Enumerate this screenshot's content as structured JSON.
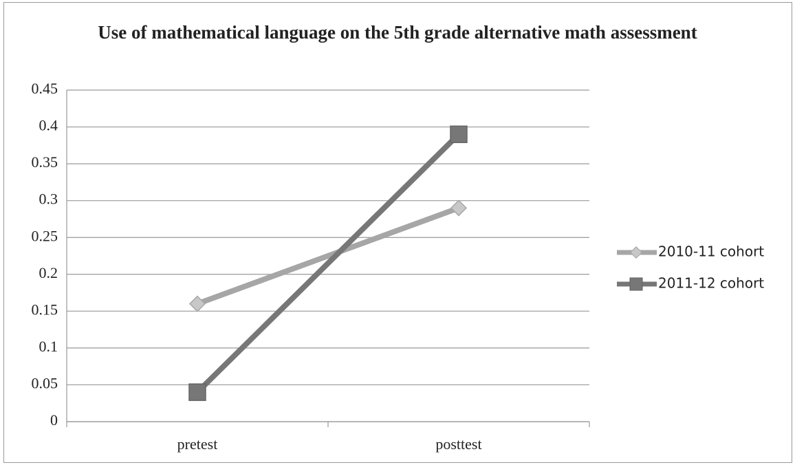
{
  "chart_data": {
    "type": "line",
    "title": "Use of mathematical language on the 5th grade alternative math assessment",
    "categories": [
      "pretest",
      "posttest"
    ],
    "series": [
      {
        "name": "2010-11 cohort",
        "color": "#a6a6a6",
        "marker": "diamond",
        "values": [
          0.16,
          0.29
        ]
      },
      {
        "name": "2011-12 cohort",
        "color": "#777777",
        "marker": "square",
        "values": [
          0.04,
          0.39
        ]
      }
    ],
    "ylim": [
      0,
      0.45
    ],
    "yticks": [
      0,
      0.05,
      0.1,
      0.15,
      0.2,
      0.25,
      0.3,
      0.35,
      0.4,
      0.45
    ],
    "grid": true,
    "legend": "right"
  }
}
